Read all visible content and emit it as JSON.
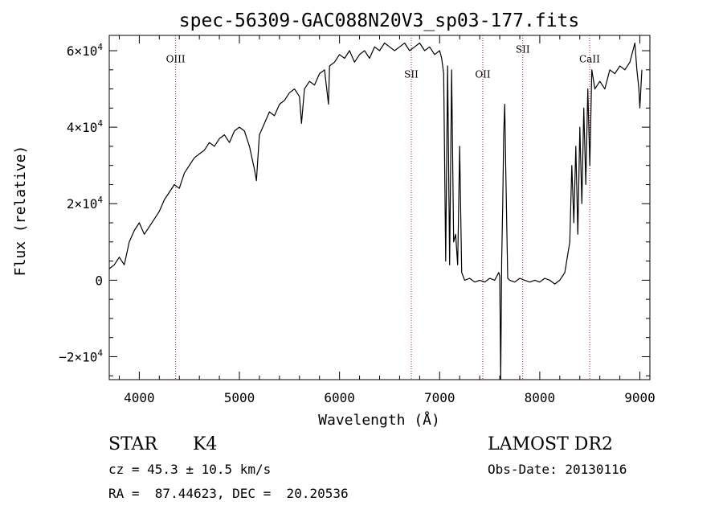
{
  "chart_data": {
    "type": "line",
    "title": "spec-56309-GAC088N20V3_sp03-177.fits",
    "xlabel": "Wavelength (Å)",
    "ylabel": "Flux (relative)",
    "xlim": [
      3700,
      9100
    ],
    "ylim": [
      -26000,
      64000
    ],
    "x_ticks": [
      4000,
      5000,
      6000,
      7000,
      8000,
      9000
    ],
    "y_ticks": [
      {
        "value": 60000,
        "mantissa": "6",
        "exp": "4"
      },
      {
        "value": 40000,
        "mantissa": "4",
        "exp": "4"
      },
      {
        "value": 20000,
        "mantissa": "2",
        "exp": "4"
      },
      {
        "value": 0,
        "mantissa": "0",
        "exp": ""
      },
      {
        "value": -20000,
        "mantissa": "−2",
        "exp": "4"
      }
    ],
    "line_markers": [
      {
        "label": "OIII",
        "wavelength": 4363,
        "label_y": 57000
      },
      {
        "label": "SII",
        "wavelength": 6717,
        "label_y": 53000
      },
      {
        "label": "OII",
        "wavelength": 7431,
        "label_y": 53000
      },
      {
        "label": "SII",
        "wavelength": 7830,
        "label_y": 59500
      },
      {
        "label": "CaII",
        "wavelength": 8498,
        "label_y": 57000
      }
    ],
    "series": [
      {
        "x": [
          3700,
          3750,
          3800,
          3850,
          3900,
          3950,
          4000,
          4050,
          4100,
          4150,
          4200,
          4250,
          4300,
          4350,
          4400,
          4450,
          4500,
          4550,
          4600,
          4650,
          4700,
          4750,
          4800,
          4850,
          4900,
          4950,
          5000,
          5050,
          5100,
          5150,
          5170,
          5200,
          5250,
          5300,
          5350,
          5400,
          5450,
          5500,
          5550,
          5600,
          5620,
          5650,
          5700,
          5750,
          5800,
          5850,
          5890,
          5900,
          5950,
          6000,
          6050,
          6100,
          6150,
          6200,
          6250,
          6300,
          6350,
          6400,
          6450,
          6500,
          6550,
          6600,
          6650,
          6700,
          6750,
          6800,
          6850,
          6900,
          6950,
          7000,
          7020,
          7040,
          7060,
          7080,
          7100,
          7120,
          7140,
          7160,
          7180,
          7200,
          7220,
          7250,
          7300,
          7350,
          7400,
          7450,
          7500,
          7550,
          7590,
          7600,
          7610,
          7620,
          7630,
          7640,
          7650,
          7660,
          7680,
          7700,
          7750,
          7800,
          7850,
          7900,
          7950,
          8000,
          8050,
          8100,
          8150,
          8200,
          8250,
          8300,
          8320,
          8340,
          8360,
          8380,
          8400,
          8420,
          8440,
          8460,
          8480,
          8500,
          8520,
          8550,
          8600,
          8650,
          8700,
          8750,
          8800,
          8850,
          8900,
          8930,
          8950,
          8970,
          8990,
          9000,
          9020
        ],
        "y": [
          3000,
          4000,
          6000,
          4000,
          10000,
          13000,
          15000,
          12000,
          14000,
          16000,
          18000,
          21000,
          23000,
          25000,
          24000,
          28000,
          30000,
          32000,
          33000,
          34000,
          36000,
          35000,
          37000,
          38000,
          36000,
          39000,
          40000,
          39000,
          35000,
          29000,
          26000,
          38000,
          41000,
          44000,
          43000,
          46000,
          47000,
          49000,
          50000,
          48000,
          41000,
          50000,
          52000,
          51000,
          54000,
          55000,
          46000,
          56000,
          57000,
          59000,
          58000,
          60000,
          57000,
          59000,
          60000,
          58000,
          61000,
          60000,
          62000,
          61000,
          60000,
          61000,
          62000,
          60000,
          61000,
          62000,
          60000,
          61000,
          59000,
          60000,
          58000,
          54000,
          5000,
          56000,
          4000,
          55000,
          10000,
          12000,
          4000,
          35000,
          2000,
          0,
          500,
          -500,
          0,
          -500,
          500,
          0,
          2000,
          1000,
          -26000,
          5000,
          20000,
          38000,
          46000,
          30000,
          500,
          0,
          -500,
          500,
          0,
          -500,
          0,
          -500,
          500,
          0,
          -1000,
          0,
          2000,
          10000,
          30000,
          15000,
          35000,
          12000,
          40000,
          20000,
          45000,
          25000,
          50000,
          30000,
          55000,
          50000,
          52000,
          50000,
          55000,
          54000,
          56000,
          55000,
          57000,
          60000,
          62000,
          55000,
          50000,
          45000,
          55000
        ]
      }
    ]
  },
  "info": {
    "object_type": "STAR",
    "subclass": "K4",
    "survey": "LAMOST DR2",
    "cz": "cz = 45.3 ± 10.5 km/s",
    "obs_date": "Obs-Date: 20130116",
    "coords": "RA =  87.44623, DEC =  20.20536"
  }
}
